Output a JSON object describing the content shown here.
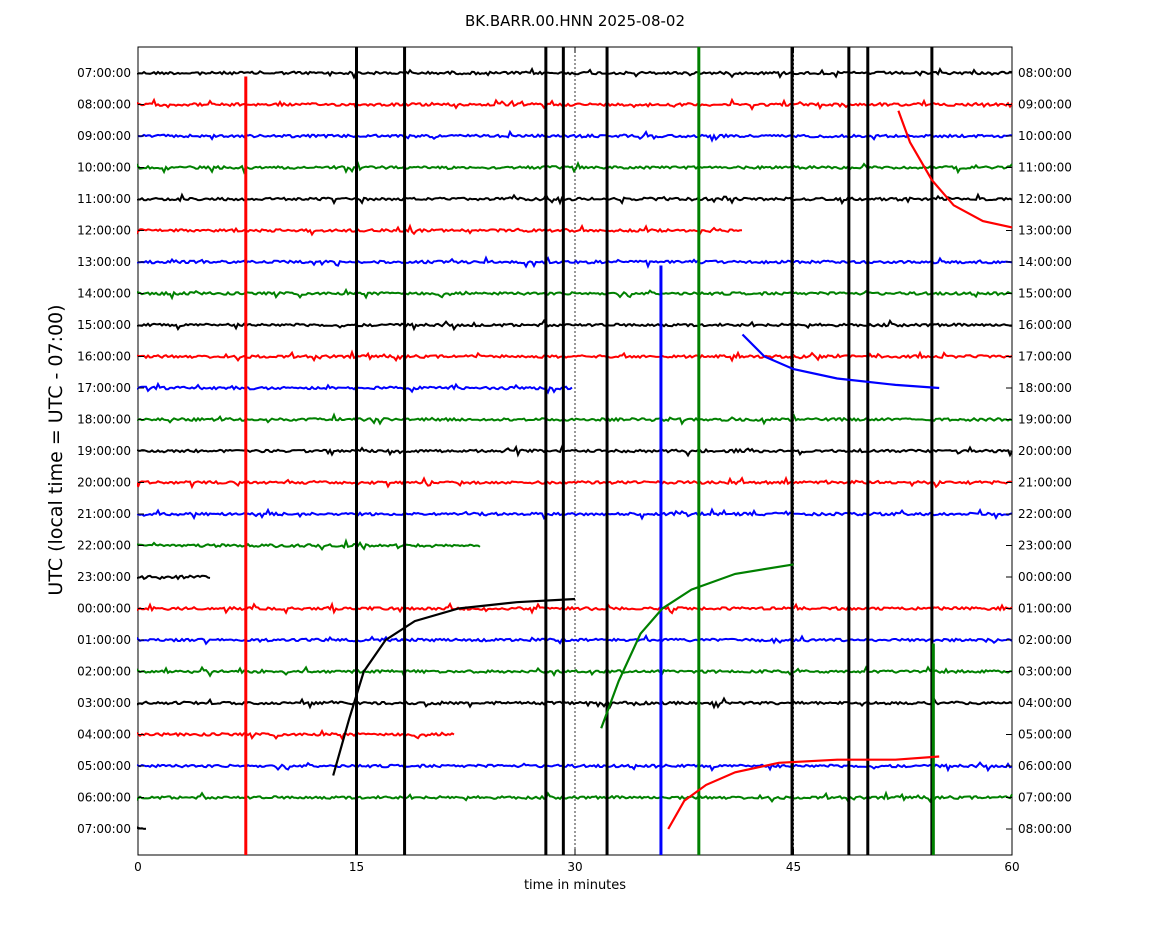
{
  "chart_data": {
    "type": "line",
    "title": "BK.BARR.00.HNN 2025-08-02",
    "xlabel": "time in minutes",
    "ylabel": "UTC (local time = UTC - 07:00)",
    "xlim": [
      0,
      60
    ],
    "x_ticks": [
      0,
      15,
      30,
      45,
      60
    ],
    "grid": false,
    "dotted_guides_minutes": [
      30,
      45
    ],
    "trace_color_cycle": [
      "#000000",
      "#ff0000",
      "#0000ff",
      "#008000"
    ],
    "left_labels": [
      "07:00:00",
      "08:00:00",
      "09:00:00",
      "10:00:00",
      "11:00:00",
      "12:00:00",
      "13:00:00",
      "14:00:00",
      "15:00:00",
      "16:00:00",
      "17:00:00",
      "18:00:00",
      "19:00:00",
      "20:00:00",
      "21:00:00",
      "22:00:00",
      "23:00:00",
      "00:00:00",
      "01:00:00",
      "02:00:00",
      "03:00:00",
      "04:00:00",
      "05:00:00",
      "06:00:00",
      "07:00:00"
    ],
    "right_labels": [
      "08:00:00",
      "09:00:00",
      "10:00:00",
      "11:00:00",
      "12:00:00",
      "13:00:00",
      "14:00:00",
      "15:00:00",
      "16:00:00",
      "17:00:00",
      "18:00:00",
      "19:00:00",
      "20:00:00",
      "21:00:00",
      "22:00:00",
      "23:00:00",
      "00:00:00",
      "01:00:00",
      "02:00:00",
      "03:00:00",
      "04:00:00",
      "05:00:00",
      "06:00:00",
      "07:00:00",
      "08:00:00"
    ],
    "trace_extents_minutes": [
      [
        0,
        60
      ],
      [
        0,
        60
      ],
      [
        0,
        60
      ],
      [
        0,
        60
      ],
      [
        0,
        60
      ],
      [
        0,
        41.5
      ],
      [
        0,
        60
      ],
      [
        0,
        60
      ],
      [
        0,
        60
      ],
      [
        0,
        60
      ],
      [
        0,
        29.9
      ],
      [
        0,
        60
      ],
      [
        0,
        60
      ],
      [
        0,
        60
      ],
      [
        0,
        60
      ],
      [
        0,
        23.5
      ],
      [
        0,
        5
      ],
      [
        0,
        60
      ],
      [
        0,
        60
      ],
      [
        0,
        60
      ],
      [
        0,
        60
      ],
      [
        0,
        21.8
      ],
      [
        0,
        60
      ],
      [
        0,
        60
      ],
      [
        0,
        0.6
      ]
    ],
    "events": [
      {
        "minute": 7.4,
        "from_row": 1,
        "to_row": 24,
        "color": "#ff0000"
      },
      {
        "minute": 15.0,
        "from_row": 0,
        "to_row": 24,
        "color": "#000000"
      },
      {
        "minute": 18.3,
        "from_row": 0,
        "to_row": 24,
        "color": "#000000"
      },
      {
        "minute": 28.0,
        "from_row": 0,
        "to_row": 24,
        "color": "#000000"
      },
      {
        "minute": 29.2,
        "from_row": 0,
        "to_row": 24,
        "color": "#000000"
      },
      {
        "minute": 32.2,
        "from_row": 0,
        "to_row": 24,
        "color": "#000000"
      },
      {
        "minute": 35.9,
        "from_row": 7,
        "to_row": 24,
        "color": "#0000ff"
      },
      {
        "minute": 38.5,
        "from_row": 0,
        "to_row": 24,
        "color": "#008000"
      },
      {
        "minute": 44.9,
        "from_row": 0,
        "to_row": 24,
        "color": "#000000"
      },
      {
        "minute": 48.8,
        "from_row": 0,
        "to_row": 24,
        "color": "#000000"
      },
      {
        "minute": 50.1,
        "from_row": 0,
        "to_row": 24,
        "color": "#000000"
      },
      {
        "minute": 54.5,
        "from_row": 0,
        "to_row": 24,
        "color": "#000000"
      },
      {
        "minute": 54.6,
        "from_row": 19,
        "to_row": 24,
        "color": "#008000"
      }
    ],
    "drift_curves": [
      {
        "color": "#ff0000",
        "x": [
          52.2,
          53,
          54.5,
          56,
          58,
          60
        ],
        "row": [
          1.2,
          2.2,
          3.4,
          4.2,
          4.7,
          4.9
        ]
      },
      {
        "color": "#0000ff",
        "x": [
          41.5,
          43,
          45,
          48,
          52,
          55
        ],
        "row": [
          8.3,
          9.0,
          9.4,
          9.7,
          9.9,
          10.0
        ]
      },
      {
        "color": "#000000",
        "x": [
          13.4,
          14.5,
          15.5,
          17,
          19,
          22,
          26,
          30
        ],
        "row": [
          22.3,
          20.5,
          19.0,
          18.0,
          17.4,
          17.0,
          16.8,
          16.7
        ]
      },
      {
        "color": "#008000",
        "x": [
          31.8,
          33,
          34.5,
          36,
          38,
          41,
          45
        ],
        "row": [
          20.8,
          19.3,
          17.8,
          17.0,
          16.4,
          15.9,
          15.6
        ]
      },
      {
        "color": "#ff0000",
        "x": [
          36.4,
          37.5,
          39,
          41,
          44,
          48,
          52,
          55
        ],
        "row": [
          24.0,
          23.1,
          22.6,
          22.2,
          21.9,
          21.8,
          21.8,
          21.7
        ]
      }
    ]
  }
}
